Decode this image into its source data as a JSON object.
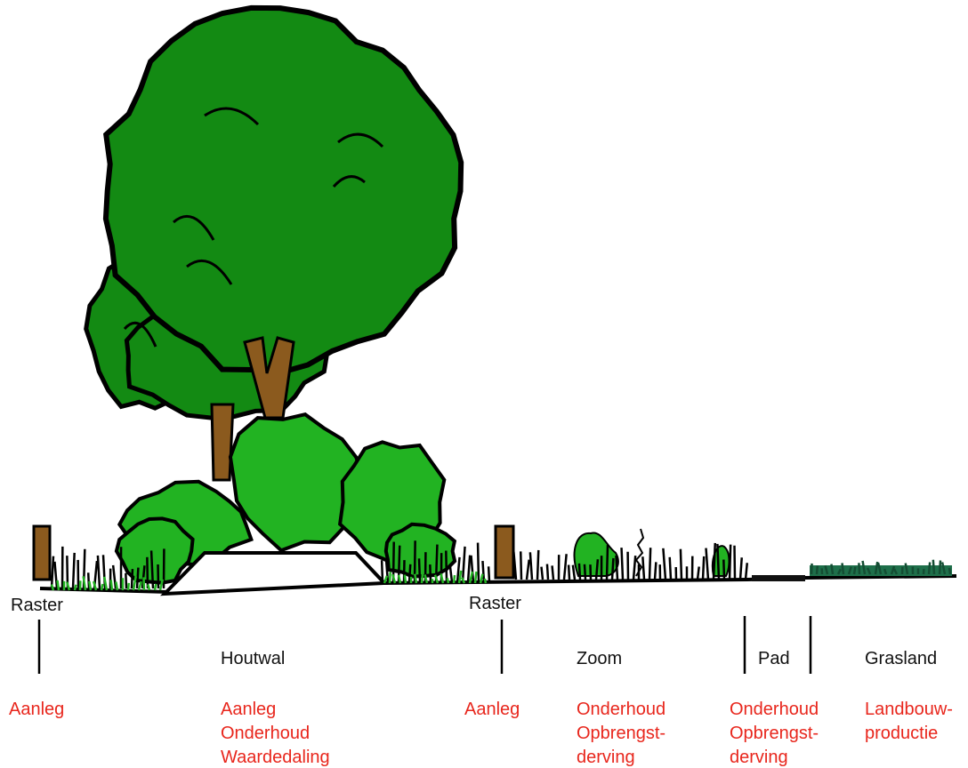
{
  "zones": [
    {
      "name": "Raster",
      "costs": [
        "Aanleg"
      ]
    },
    {
      "name": "Houtwal",
      "costs": [
        "Aanleg",
        "Onderhoud",
        "Waardedaling"
      ]
    },
    {
      "name": "Raster",
      "costs": [
        "Aanleg"
      ]
    },
    {
      "name": "Zoom",
      "costs": [
        "Onderhoud",
        "Opbrengst-",
        "derving"
      ]
    },
    {
      "name": "Pad",
      "costs": [
        "Onderhoud",
        "Opbrengst-",
        "derving"
      ]
    },
    {
      "name": "Grasland",
      "costs": [
        "Landbouw-",
        "productie"
      ]
    }
  ]
}
